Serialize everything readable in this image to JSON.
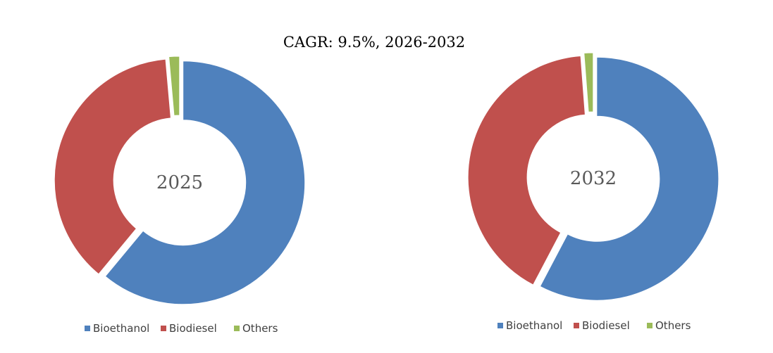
{
  "headline": "CAGR:   9.5%, 2026-2032",
  "chart_data": [
    {
      "type": "pie",
      "center_label": "2025",
      "categories": [
        "Bioethanol",
        "Biodiesel",
        "Others"
      ],
      "values": [
        61.0,
        37.6,
        1.4
      ],
      "colors": [
        "#4f81bd",
        "#c0504d",
        "#9bbb59"
      ],
      "legend": "bottom"
    },
    {
      "type": "pie",
      "center_label": "2032",
      "categories": [
        "Bioethanol",
        "Biodiesel",
        "Others"
      ],
      "values": [
        57.7,
        41.1,
        1.2
      ],
      "colors": [
        "#4f81bd",
        "#c0504d",
        "#9bbb59"
      ],
      "legend": "bottom"
    }
  ]
}
